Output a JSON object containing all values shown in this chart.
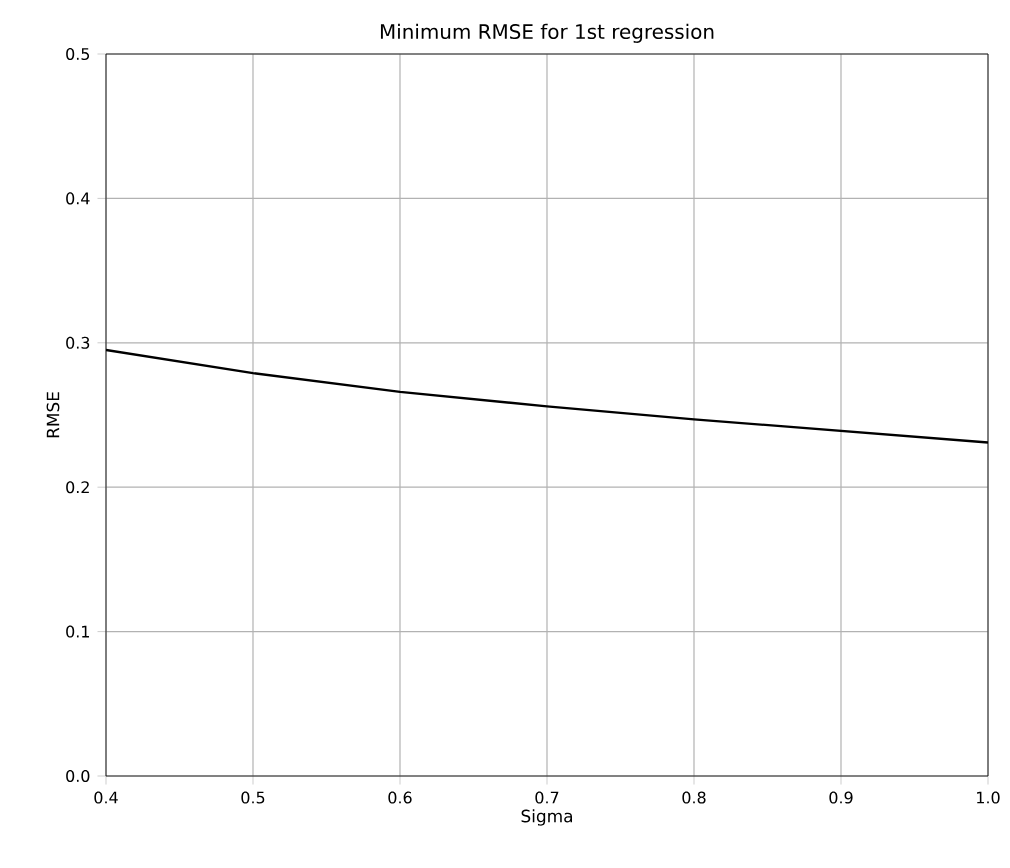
{
  "chart_data": {
    "type": "line",
    "title": "Minimum RMSE for 1st regression",
    "xlabel": "Sigma",
    "ylabel": "RMSE",
    "x": [
      0.4,
      0.5,
      0.6,
      0.7,
      0.8,
      0.9,
      1.0
    ],
    "series": [
      {
        "color": "#000000",
        "values": [
          0.295,
          0.279,
          0.266,
          0.256,
          0.247,
          0.239,
          0.231
        ]
      }
    ],
    "xlim": [
      0.4,
      1.0
    ],
    "ylim": [
      0,
      0.5
    ],
    "xticks": [
      0.4,
      0.5,
      0.6,
      0.7,
      0.8,
      0.9,
      {
        "value": 1,
        "label": "1.0"
      }
    ],
    "yticks": [
      {
        "value": 0,
        "label": "0.0"
      },
      0.1,
      0.2,
      0.3,
      0.4,
      0.5
    ],
    "grid": true,
    "marker": "none",
    "line_style": "solid"
  }
}
